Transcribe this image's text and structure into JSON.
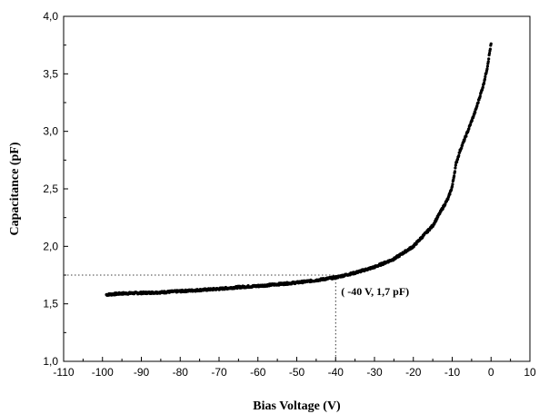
{
  "chart_data": {
    "type": "scatter",
    "xlabel": "Bias Voltage (V)",
    "ylabel": "Capacitance (pF)",
    "xlim": [
      -110,
      10
    ],
    "ylim": [
      1.0,
      4.0
    ],
    "x_ticks": [
      "-110",
      "-100",
      "-90",
      "-80",
      "-70",
      "-60",
      "-50",
      "-40",
      "-30",
      "-20",
      "-10",
      "0",
      "10"
    ],
    "y_ticks": [
      "1,0",
      "1,5",
      "2,0",
      "2,5",
      "3,0",
      "3,5",
      "4,0"
    ],
    "grid": false,
    "marker_color": "#000000",
    "curve_anchors": [
      [
        -99,
        1.58
      ],
      [
        -95,
        1.59
      ],
      [
        -90,
        1.595
      ],
      [
        -85,
        1.6
      ],
      [
        -80,
        1.61
      ],
      [
        -75,
        1.62
      ],
      [
        -70,
        1.63
      ],
      [
        -65,
        1.645
      ],
      [
        -60,
        1.655
      ],
      [
        -55,
        1.67
      ],
      [
        -50,
        1.685
      ],
      [
        -45,
        1.705
      ],
      [
        -40,
        1.73
      ],
      [
        -35,
        1.77
      ],
      [
        -30,
        1.82
      ],
      [
        -25,
        1.89
      ],
      [
        -20,
        2.0
      ],
      [
        -15,
        2.18
      ],
      [
        -11,
        2.42
      ],
      [
        -10,
        2.52
      ],
      [
        -9,
        2.72
      ],
      [
        -8,
        2.83
      ],
      [
        -6,
        3.0
      ],
      [
        -4,
        3.18
      ],
      [
        -2,
        3.4
      ],
      [
        -1,
        3.55
      ],
      [
        -0.3,
        3.7
      ],
      [
        0,
        3.76
      ]
    ],
    "annotation": {
      "text": "( -40 V, 1,7 pF)",
      "x": -40,
      "y": 1.75
    }
  }
}
